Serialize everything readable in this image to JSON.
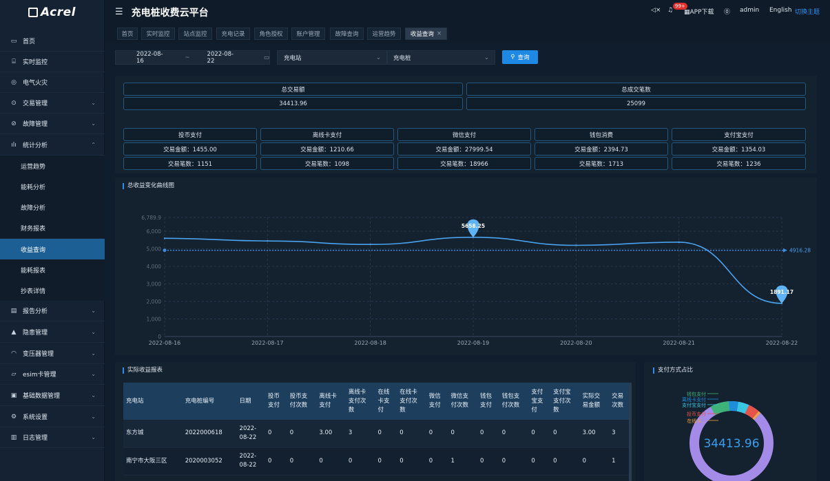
{
  "app": {
    "logo": "Acrel",
    "title": "充电桩收费云平台"
  },
  "header": {
    "badge": "99+",
    "app_download": "APP下载",
    "user": "admin",
    "language": "English",
    "switch_theme": "切换主题"
  },
  "sidebar": {
    "items": [
      {
        "label": "首页",
        "icon": "home-icon"
      },
      {
        "label": "实时监控",
        "icon": "monitor-icon"
      },
      {
        "label": "电气火灾",
        "icon": "fire-icon"
      },
      {
        "label": "交易管理",
        "icon": "money-icon"
      },
      {
        "label": "故障管理",
        "icon": "fault-icon"
      },
      {
        "label": "统计分析",
        "icon": "bar-chart-icon"
      },
      {
        "label": "报告分析",
        "icon": "report-icon"
      },
      {
        "label": "隐患管理",
        "icon": "warning-icon"
      },
      {
        "label": "变压器管理",
        "icon": "transformer-icon"
      },
      {
        "label": "esim卡管理",
        "icon": "sim-icon"
      },
      {
        "label": "基础数据管理",
        "icon": "data-icon"
      },
      {
        "label": "系统设置",
        "icon": "settings-icon"
      },
      {
        "label": "日志管理",
        "icon": "log-icon"
      }
    ],
    "sub_items": [
      "运营趋势",
      "能耗分析",
      "故障分析",
      "财务报表",
      "收益查询",
      "能耗报表",
      "抄表详情"
    ]
  },
  "tabs": [
    "首页",
    "实时监控",
    "站点监控",
    "充电记录",
    "角色授权",
    "账户管理",
    "故障查询",
    "运营趋势",
    "收益查询"
  ],
  "filter": {
    "start_date": "2022-08-16",
    "separator": "~",
    "end_date": "2022-08-22",
    "station_placeholder": "充电站",
    "pile_placeholder": "充电桩",
    "query_label": "查询"
  },
  "summary": {
    "total_amount_label": "总交易额",
    "total_amount": "34413.96",
    "total_count_label": "总成交笔数",
    "total_count": "25099"
  },
  "payments": [
    {
      "name": "投币支付",
      "amount": "交易金额：1455.00",
      "count": "交易笔数：1151"
    },
    {
      "name": "离线卡支付",
      "amount": "交易金额：1210.66",
      "count": "交易笔数：1098"
    },
    {
      "name": "微信支付",
      "amount": "交易金额：27999.54",
      "count": "交易笔数：18966"
    },
    {
      "name": "钱包消费",
      "amount": "交易金额：2394.73",
      "count": "交易笔数：1713"
    },
    {
      "name": "支付宝支付",
      "amount": "交易金额：1354.03",
      "count": "交易笔数：1236"
    }
  ],
  "chart_title": "总收益变化曲线图",
  "chart_data": {
    "type": "line",
    "x": [
      "2022-08-16",
      "2022-08-17",
      "2022-08-18",
      "2022-08-19",
      "2022-08-20",
      "2022-08-21",
      "2022-08-22"
    ],
    "series": [
      {
        "values": [
          5600,
          5450,
          5250,
          5658.25,
          5200,
          5380,
          1891.17
        ]
      }
    ],
    "ylim": [
      0,
      6789.9
    ],
    "yticks": [
      "0",
      "1,000",
      "2,000",
      "3,000",
      "4,000",
      "5,000",
      "6,000",
      "6,789.9"
    ],
    "markers": [
      {
        "label": "5658.25",
        "x_index": 3,
        "value": 5658.25
      },
      {
        "label": "1891.17",
        "x_index": 6,
        "value": 1891.17
      }
    ],
    "average_line": {
      "value": 4916.28,
      "label": "4916.28"
    },
    "grid": true,
    "colors": {
      "line": "#4aa3ef",
      "average": "#3b8de0",
      "marker": "#5db3f5"
    }
  },
  "table": {
    "title": "实际收益报表",
    "headers": [
      "充电站",
      "充电桩编号",
      "日期",
      "投币\n支付",
      "投币支\n付次数",
      "离线卡\n支付",
      "离线卡\n支付次\n数",
      "在线\n卡支\n付",
      "在线卡\n支付次\n数",
      "微信\n支付",
      "微信支\n付次数",
      "钱包\n支付",
      "钱包支\n付次数",
      "支付\n宝支\n付",
      "支付宝\n支付次\n数",
      "实际交\n易金额",
      "交易\n次数"
    ],
    "rows": [
      [
        "东方城",
        "2022000618",
        "2022-\n08-22",
        "0",
        "0",
        "3.00",
        "3",
        "0",
        "0",
        "0",
        "0",
        "0",
        "0",
        "0",
        "0",
        "3.00",
        "3"
      ],
      [
        "南宁市大阪三区",
        "2020003052",
        "2022-\n08-22",
        "0",
        "0",
        "0",
        "0",
        "0",
        "0",
        "0",
        "1",
        "0",
        "0",
        "0",
        "0",
        "0",
        "1"
      ]
    ]
  },
  "donut": {
    "title": "支付方式占比",
    "center_value": "34413.96",
    "legend": [
      "钱包支付",
      "离线卡支付",
      "支付宝支付",
      "投币支付",
      "在线卡..."
    ],
    "colors": {
      "wechat": "#a58be8",
      "wallet": "#3db37a",
      "offline": "#1e8ed8",
      "alipay": "#38c6e0",
      "coin": "#e5534b",
      "online": "#f0a23c"
    }
  }
}
